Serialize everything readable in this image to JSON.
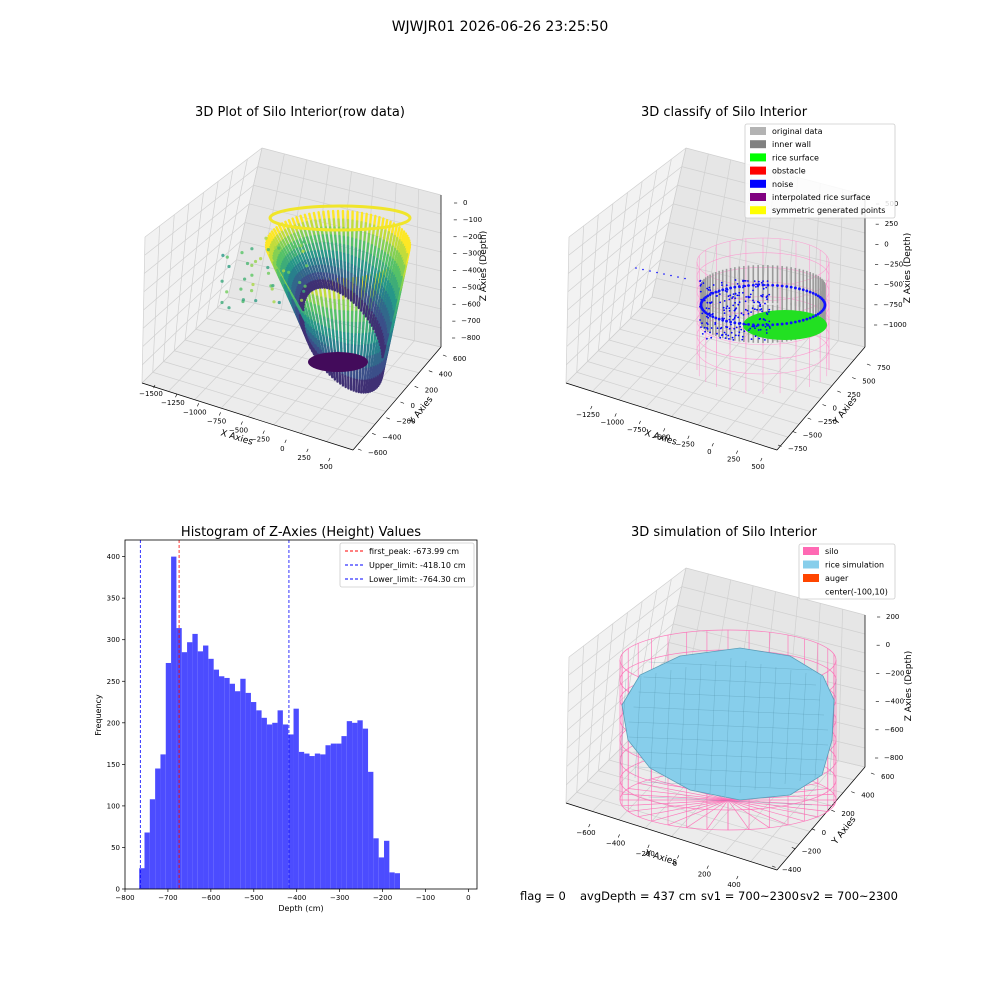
{
  "figure": {
    "suptitle": "WJWJR01 2026-06-26 23:25:50",
    "status": {
      "flag": "flag = 0",
      "avg_depth": "avgDepth = 437 cm",
      "sv1": "sv1 = 700~2300",
      "sv2": "sv2 = 700~2300"
    }
  },
  "chart_data": [
    {
      "type": "scatter3d",
      "title": "3D Plot of Silo Interior(row data)",
      "xlabel": "X Axies",
      "ylabel": "Y Axies",
      "zlabel": "Z Axies (Depth)",
      "x_ticks": [
        "−1500",
        "−1250",
        "−1000",
        "−750",
        "−500",
        "−250",
        "0",
        "250",
        "500"
      ],
      "y_ticks": [
        "−600",
        "−400",
        "−200",
        "0",
        "200",
        "400",
        "600"
      ],
      "z_ticks": [
        "0",
        "−100",
        "−200",
        "−300",
        "−400",
        "−500",
        "−600",
        "−700",
        "−800"
      ],
      "colormap": "viridis"
    },
    {
      "type": "scatter3d",
      "title": "3D classify of Silo Interior",
      "xlabel": "X Axies",
      "ylabel": "Y Axies",
      "zlabel": "Z Axies (Depth)",
      "x_ticks": [
        "−1250",
        "−1000",
        "−750",
        "−500",
        "−250",
        "0",
        "250",
        "500"
      ],
      "y_ticks": [
        "−750",
        "−500",
        "−250",
        "0",
        "250",
        "500",
        "750"
      ],
      "z_ticks": [
        "500",
        "250",
        "0",
        "−250",
        "−500",
        "−750",
        "−1000"
      ],
      "legend_position": "top-right",
      "legend": [
        {
          "label": "original data",
          "color": "#b3b3b3"
        },
        {
          "label": "inner wall",
          "color": "#808080"
        },
        {
          "label": "rice surface",
          "color": "#00ff00"
        },
        {
          "label": "obstacle",
          "color": "#ff0000"
        },
        {
          "label": "noise",
          "color": "#0000ff"
        },
        {
          "label": "interpolated rice surface",
          "color": "#800080"
        },
        {
          "label": "symmetric generated points",
          "color": "#ffff00"
        }
      ]
    },
    {
      "type": "bar",
      "title": "Histogram of Z-Axies (Height) Values",
      "xlabel": "Depth (cm)",
      "ylabel": "Frequency",
      "xlim": [
        -800,
        20
      ],
      "ylim": [
        0,
        420
      ],
      "x_ticks": [
        -800,
        -700,
        -600,
        -500,
        -400,
        -300,
        -200,
        -100,
        0
      ],
      "y_ticks": [
        0,
        50,
        100,
        150,
        200,
        250,
        300,
        350,
        400
      ],
      "bar_color": "#4c4cff",
      "bin_start": -767,
      "bin_width": 12.4,
      "values": [
        25,
        68,
        108,
        145,
        162,
        272,
        400,
        314,
        285,
        297,
        307,
        286,
        293,
        277,
        264,
        256,
        254,
        247,
        238,
        253,
        236,
        225,
        215,
        206,
        198,
        200,
        215,
        198,
        186,
        217,
        165,
        163,
        160,
        163,
        162,
        173,
        175,
        175,
        184,
        202,
        200,
        203,
        193,
        141,
        61,
        38,
        58,
        20,
        19
      ],
      "vlines": [
        {
          "label": "first_peak: -673.99 cm",
          "x": -673.99,
          "color": "#ff0000"
        },
        {
          "label": "Upper_limit: -418.10 cm",
          "x": -418.1,
          "color": "#0000ff"
        },
        {
          "label": "Lower_limit: -764.30 cm",
          "x": -764.3,
          "color": "#0000ff"
        }
      ],
      "legend_position": "top-right"
    },
    {
      "type": "surface3d",
      "title": "3D simulation of Silo Interior",
      "xlabel": "X Axies",
      "ylabel": "Y Axies",
      "zlabel": "Z Axies (Depth)",
      "x_ticks": [
        "−600",
        "−400",
        "−200",
        "0",
        "200",
        "400"
      ],
      "y_ticks": [
        "−400",
        "−200",
        "0",
        "200",
        "400",
        "600"
      ],
      "z_ticks": [
        "200",
        "0",
        "−200",
        "−400",
        "−600",
        "−800"
      ],
      "legend_position": "top-right",
      "legend": [
        {
          "label": "silo",
          "color": "#ff69b4"
        },
        {
          "label": "rice simulation",
          "color": "#87ceeb"
        },
        {
          "label": "auger",
          "color": "#ff4500"
        },
        {
          "label": "center(-100,10)",
          "color": ""
        }
      ]
    }
  ]
}
